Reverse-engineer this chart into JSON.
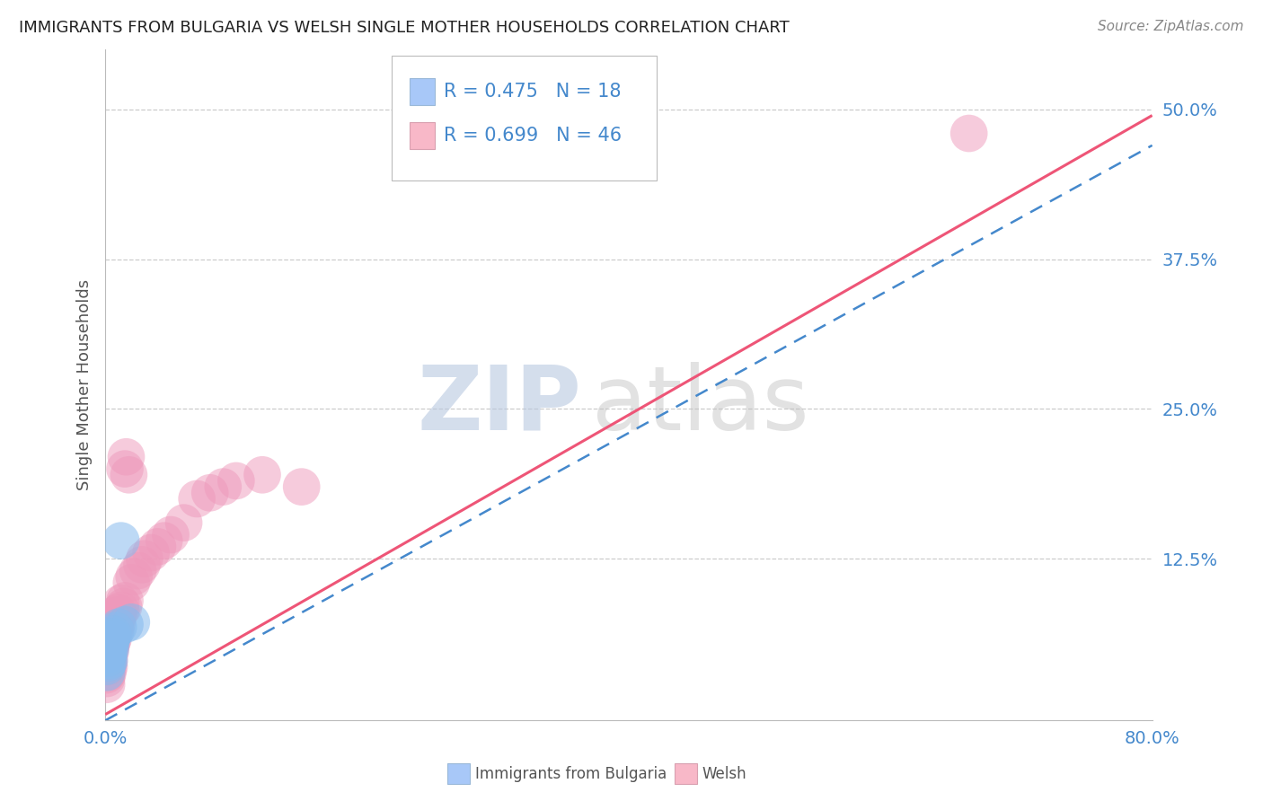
{
  "title": "IMMIGRANTS FROM BULGARIA VS WELSH SINGLE MOTHER HOUSEHOLDS CORRELATION CHART",
  "source": "Source: ZipAtlas.com",
  "ylabel": "Single Mother Households",
  "xlim": [
    0.0,
    0.8
  ],
  "ylim": [
    -0.01,
    0.55
  ],
  "xticks": [
    0.0,
    0.2,
    0.4,
    0.6,
    0.8
  ],
  "xticklabels": [
    "0.0%",
    "",
    "",
    "",
    "80.0%"
  ],
  "yticks": [
    0.0,
    0.125,
    0.25,
    0.375,
    0.5
  ],
  "yticklabels": [
    "",
    "12.5%",
    "25.0%",
    "37.5%",
    "50.0%"
  ],
  "grid_color": "#cccccc",
  "background_color": "#ffffff",
  "legend": {
    "series1_label": "Immigrants from Bulgaria",
    "series1_color": "#a8c8f8",
    "series1_R": "R = 0.475",
    "series1_N": "N = 18",
    "series2_label": "Welsh",
    "series2_color": "#f8b8c8",
    "series2_R": "R = 0.699",
    "series2_N": "N = 46"
  },
  "blue_scatter": [
    [
      0.001,
      0.03
    ],
    [
      0.001,
      0.035
    ],
    [
      0.002,
      0.038
    ],
    [
      0.002,
      0.042
    ],
    [
      0.002,
      0.045
    ],
    [
      0.003,
      0.04
    ],
    [
      0.003,
      0.048
    ],
    [
      0.003,
      0.052
    ],
    [
      0.004,
      0.05
    ],
    [
      0.004,
      0.055
    ],
    [
      0.005,
      0.058
    ],
    [
      0.005,
      0.06
    ],
    [
      0.006,
      0.062
    ],
    [
      0.008,
      0.065
    ],
    [
      0.01,
      0.068
    ],
    [
      0.012,
      0.14
    ],
    [
      0.015,
      0.07
    ],
    [
      0.02,
      0.072
    ]
  ],
  "pink_scatter": [
    [
      0.001,
      0.02
    ],
    [
      0.001,
      0.025
    ],
    [
      0.001,
      0.028
    ],
    [
      0.002,
      0.03
    ],
    [
      0.002,
      0.035
    ],
    [
      0.002,
      0.038
    ],
    [
      0.003,
      0.04
    ],
    [
      0.003,
      0.035
    ],
    [
      0.003,
      0.045
    ],
    [
      0.004,
      0.048
    ],
    [
      0.004,
      0.052
    ],
    [
      0.005,
      0.055
    ],
    [
      0.005,
      0.06
    ],
    [
      0.006,
      0.062
    ],
    [
      0.006,
      0.058
    ],
    [
      0.007,
      0.065
    ],
    [
      0.007,
      0.07
    ],
    [
      0.008,
      0.068
    ],
    [
      0.008,
      0.075
    ],
    [
      0.009,
      0.072
    ],
    [
      0.01,
      0.078
    ],
    [
      0.01,
      0.08
    ],
    [
      0.012,
      0.082
    ],
    [
      0.012,
      0.088
    ],
    [
      0.014,
      0.085
    ],
    [
      0.015,
      0.09
    ],
    [
      0.015,
      0.2
    ],
    [
      0.016,
      0.21
    ],
    [
      0.018,
      0.195
    ],
    [
      0.02,
      0.105
    ],
    [
      0.022,
      0.11
    ],
    [
      0.025,
      0.115
    ],
    [
      0.028,
      0.12
    ],
    [
      0.03,
      0.125
    ],
    [
      0.035,
      0.13
    ],
    [
      0.04,
      0.135
    ],
    [
      0.045,
      0.14
    ],
    [
      0.05,
      0.145
    ],
    [
      0.06,
      0.155
    ],
    [
      0.07,
      0.175
    ],
    [
      0.08,
      0.18
    ],
    [
      0.09,
      0.185
    ],
    [
      0.1,
      0.19
    ],
    [
      0.12,
      0.195
    ],
    [
      0.66,
      0.48
    ],
    [
      0.15,
      0.185
    ]
  ],
  "title_color": "#222222",
  "source_color": "#888888",
  "axis_label_color": "#555555",
  "tick_color": "#4488cc",
  "line_blue_color": "#4488cc",
  "line_pink_color": "#ee5577",
  "scatter_blue_color": "#88bbee",
  "scatter_pink_color": "#ee99bb",
  "scatter_blue_alpha": 0.55,
  "scatter_pink_alpha": 0.5,
  "scatter_size": 900
}
